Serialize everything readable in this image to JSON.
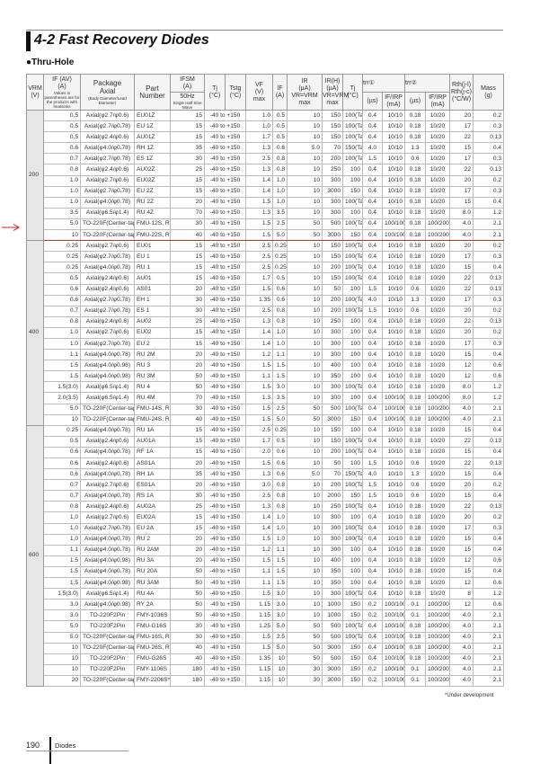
{
  "title": "4-2 Fast Recovery Diodes",
  "subtitle": "●Thru-Hole",
  "accent_color": "#cc2222",
  "headers": {
    "vrm": "VRM",
    "vrm_unit": "(V)",
    "if": "IF (AV)",
    "if_unit": "(A)",
    "if_note": "Values in parentheses are for the products with heatsinks",
    "pkg": "Package",
    "pkg2": "Axial",
    "pkg_note": "(Body Diameter/Lead Diameter)",
    "part": "Part Number",
    "ifsm": "IFSM",
    "ifsm_unit": "(A)",
    "ifsm_sub": "50Hz",
    "ifsm_note": "Single Half Sine Wave",
    "tj": "Tj",
    "tj_unit": "(°C)",
    "tstg": "Tstg",
    "tstg_unit": "(°C)",
    "vf": "VF",
    "vf_unit": "(V)",
    "vf_max": "max",
    "vf_if": "IF",
    "vf_if_unit": "(A)",
    "ir": "IR",
    "ir_unit": "(µA)",
    "ir_cond": "VR=VRM",
    "ir_max": "max",
    "irh": "IR(H)",
    "irh_unit": "(µA)",
    "irh_cond": "VR=VRM",
    "irh_max": "max",
    "tj2": "Tj",
    "tj2_unit": "(°C)",
    "trr1": "trr①",
    "trr1_unit": "(µs)",
    "ifirp1": "IF/IRP",
    "ifirp1_unit": "(mA)",
    "trr2": "trr②",
    "trr2_unit": "(µs)",
    "ifirp2": "IF/IRP",
    "ifirp2_unit": "(mA)",
    "rth": "Rth(j-l)",
    "rth2": "Rth(j-c)",
    "rth_unit": "(°C/W)",
    "mass": "Mass",
    "mass_unit": "(g)"
  },
  "groups": [
    {
      "vrm": "200",
      "rows": [
        [
          "0.5",
          "Axial(φ2.7/φ0.6)",
          "EU01Z",
          "15",
          "-40 to +150",
          "1.0",
          "0.5",
          "10",
          "150",
          "100(Ta)",
          "0.4",
          "10/10",
          "0.18",
          "10/20",
          "20",
          "0.2"
        ],
        [
          "0.5",
          "Axial(φ2.7/φ0.78)",
          "EU 1Z",
          "15",
          "-40 to +150",
          "1.0",
          "0.5",
          "10",
          "150",
          "100(Ta)",
          "0.4",
          "10/10",
          "0.18",
          "10/20",
          "17",
          "0.3"
        ],
        [
          "0.5",
          "Axial(φ2.4/φ0.6)",
          "AU01Z",
          "15",
          "-40 to +150",
          "1.7",
          "0.5",
          "10",
          "150",
          "100(Ta)",
          "0.4",
          "10/10",
          "0.18",
          "10/20",
          "22",
          "0.13"
        ],
        [
          "0.6",
          "Axial(φ4.0/φ0.78)",
          "RH 1Z",
          "35",
          "-40 to +150",
          "1.3",
          "0.6",
          "5.0",
          "70",
          "150(Ta)",
          "4.0",
          "10/10",
          "1.3",
          "10/20",
          "15",
          "0.4"
        ],
        [
          "0.7",
          "Axial(φ2.7/φ0.78)",
          "ES 1Z",
          "30",
          "-40 to +150",
          "2.5",
          "0.8",
          "10",
          "200",
          "100(Ta)",
          "1.5",
          "10/10",
          "0.6",
          "10/20",
          "17",
          "0.3"
        ],
        [
          "0.8",
          "Axial(φ2.4/φ0.6)",
          "AU02Z",
          "25",
          "-40 to +150",
          "1.3",
          "0.8",
          "10",
          "250",
          "100",
          "0.4",
          "10/10",
          "0.18",
          "10/20",
          "22",
          "0.13"
        ],
        [
          "1.0",
          "Axial(φ2.7/φ0.6)",
          "EU02Z",
          "15",
          "-40 to +150",
          "1.4",
          "1.0",
          "10",
          "300",
          "100",
          "0.4",
          "10/10",
          "0.18",
          "10/20",
          "20",
          "0.2"
        ],
        [
          "1.0",
          "Axial(φ2.7/φ0.78)",
          "EU 2Z",
          "15",
          "-40 to +150",
          "1.4",
          "1.0",
          "10",
          "3000",
          "150",
          "0.4",
          "10/10",
          "0.18",
          "10/20",
          "17",
          "0.3"
        ],
        [
          "1.0",
          "Axial(φ4.0/φ0.78)",
          "RU 2Z",
          "20",
          "-40 to +150",
          "1.5",
          "1.0",
          "10",
          "300",
          "100(Ta)",
          "0.4",
          "10/10",
          "0.18",
          "10/20",
          "15",
          "0.4"
        ],
        [
          "3.5",
          "Axial(φ6.5/φ1.4)",
          "RU 4Z",
          "70",
          "-40 to +150",
          "1.3",
          "3.5",
          "10",
          "300",
          "100",
          "0.4",
          "10/10",
          "0.18",
          "10/20",
          "8.0",
          "1.2"
        ],
        [
          "5.0",
          "TO-220F(Center-tap)",
          "FMU-12S, R",
          "30",
          "-40 to +150",
          "1.5",
          "2.5",
          "50",
          "500",
          "100(Ta)",
          "0.4",
          "100/100",
          "0.18",
          "100/200",
          "4.0",
          "2.1"
        ],
        [
          "10",
          "TO-220F(Center-tap)",
          "FMU-22S, R",
          "40",
          "-40 to +150",
          "1.5",
          "5.0",
          "50",
          "3000",
          "150",
          "0.4",
          "100/100",
          "0.18",
          "100/200",
          "4.0",
          "2.1"
        ]
      ]
    },
    {
      "vrm": "400",
      "rows": [
        [
          "0.25",
          "Axial(φ2.7/φ0.6)",
          "EU01",
          "15",
          "-40 to +150",
          "2.5",
          "0.25",
          "10",
          "150",
          "100(Ta)",
          "0.4",
          "10/10",
          "0.18",
          "10/20",
          "20",
          "0.2"
        ],
        [
          "0.25",
          "Axial(φ2.7/φ0.78)",
          "EU 1",
          "15",
          "-40 to +150",
          "2.5",
          "0.25",
          "10",
          "150",
          "100(Ta)",
          "0.4",
          "10/10",
          "0.18",
          "10/20",
          "17",
          "0.3"
        ],
        [
          "0.25",
          "Axial(φ4.0/φ0.78)",
          "RU 1",
          "15",
          "-40 to +150",
          "2.5",
          "0.25",
          "10",
          "200",
          "100(Ta)",
          "0.4",
          "10/10",
          "0.18",
          "10/20",
          "15",
          "0.4"
        ],
        [
          "0.5",
          "Axial(φ2.4/φ0.6)",
          "AU01",
          "15",
          "-40 to +150",
          "1.7",
          "0.5",
          "10",
          "150",
          "100(Ta)",
          "0.4",
          "10/10",
          "0.18",
          "10/20",
          "22",
          "0.13"
        ],
        [
          "0.6",
          "Axial(φ2.4/φ0.6)",
          "AS01",
          "20",
          "-40 to +150",
          "1.5",
          "0.6",
          "10",
          "50",
          "100",
          "1.5",
          "10/10",
          "0.6",
          "10/20",
          "22",
          "0.13"
        ],
        [
          "0.6",
          "Axial(φ2.7/φ0.78)",
          "EH 1",
          "30",
          "-40 to +150",
          "1.35",
          "0.6",
          "10",
          "200",
          "100(Ta)",
          "4.0",
          "10/10",
          "1.3",
          "10/20",
          "17",
          "0.3"
        ],
        [
          "0.7",
          "Axial(φ2.7/φ0.78)",
          "ES 1",
          "30",
          "-40 to +150",
          "2.5",
          "0.8",
          "10",
          "200",
          "100(Ta)",
          "1.5",
          "10/10",
          "0.6",
          "10/20",
          "20",
          "0.2"
        ],
        [
          "0.8",
          "Axial(φ2.4/φ0.6)",
          "AU02",
          "25",
          "-40 to +150",
          "1.3",
          "0.8",
          "10",
          "250",
          "100",
          "0.4",
          "10/10",
          "0.18",
          "10/20",
          "22",
          "0.13"
        ],
        [
          "1.0",
          "Axial(φ2.7/φ0.6)",
          "EU02",
          "15",
          "-40 to +150",
          "1.4",
          "1.0",
          "10",
          "300",
          "100",
          "0.4",
          "10/10",
          "0.18",
          "10/20",
          "20",
          "0.2"
        ],
        [
          "1.0",
          "Axial(φ2.7/φ0.78)",
          "EU 2",
          "15",
          "-40 to +150",
          "1.4",
          "1.0",
          "10",
          "300",
          "100",
          "0.4",
          "10/10",
          "0.18",
          "10/20",
          "17",
          "0.3"
        ],
        [
          "1.1",
          "Axial(φ4.0/φ0.78)",
          "RU 2M",
          "20",
          "-40 to +150",
          "1.2",
          "1.1",
          "10",
          "300",
          "100",
          "0.4",
          "10/10",
          "0.18",
          "10/20",
          "15",
          "0.4"
        ],
        [
          "1.5",
          "Axial(φ4.0/φ0.98)",
          "RU 3",
          "20",
          "-40 to +150",
          "1.5",
          "1.5",
          "10",
          "400",
          "100",
          "0.4",
          "10/10",
          "0.18",
          "10/20",
          "12",
          "0.6"
        ],
        [
          "1.5",
          "Axial(φ4.0/φ0.98)",
          "RU 3M",
          "50",
          "-40 to +150",
          "1.1",
          "1.5",
          "10",
          "350",
          "100",
          "0.4",
          "10/10",
          "0.18",
          "10/20",
          "12",
          "0.6"
        ],
        [
          "1.5(3.0)",
          "Axial(φ6.5/φ1.4)",
          "RU 4",
          "50",
          "-40 to +150",
          "1.5",
          "3.0",
          "10",
          "300",
          "100(Ta)",
          "0.4",
          "10/10",
          "0.18",
          "10/20",
          "8.0",
          "1.2"
        ],
        [
          "2.0(3.5)",
          "Axial(φ6.5/φ1.4)",
          "RU 4M",
          "70",
          "-40 to +150",
          "1.3",
          "3.5",
          "10",
          "300",
          "100",
          "0.4",
          "100/100",
          "0.18",
          "100/200",
          "8.0",
          "1.2"
        ],
        [
          "5.0",
          "TO-220F(Center-tap)",
          "FMU-14S, R",
          "30",
          "-40 to +150",
          "1.5",
          "2.5",
          "50",
          "500",
          "100(Ta)",
          "0.4",
          "100/100",
          "0.18",
          "100/200",
          "4.0",
          "2.1"
        ],
        [
          "10",
          "TO-220F(Center-tap)",
          "FMU-24S, R",
          "40",
          "-40 to +150",
          "1.5",
          "5.0",
          "50",
          "3000",
          "150",
          "0.4",
          "100/100",
          "0.18",
          "100/200",
          "4.0",
          "2.1"
        ]
      ]
    },
    {
      "vrm": "600",
      "rows": [
        [
          "0.25",
          "Axial(φ4.0/φ0.78)",
          "RU 1A",
          "15",
          "-40 to +150",
          "2.5",
          "0.25",
          "10",
          "150",
          "100",
          "0.4",
          "10/10",
          "0.18",
          "10/20",
          "15",
          "0.4"
        ],
        [
          "0.5",
          "Axial(φ2.4/φ0.6)",
          "AU01A",
          "15",
          "-40 to +150",
          "1.7",
          "0.5",
          "10",
          "150",
          "100(Ta)",
          "0.4",
          "10/10",
          "0.18",
          "10/20",
          "22",
          "0.13"
        ],
        [
          "0.6",
          "Axial(φ4.0/φ0.78)",
          "RF 1A",
          "15",
          "-40 to +150",
          "2.0",
          "0.6",
          "10",
          "200",
          "100(Ta)",
          "0.4",
          "10/10",
          "0.18",
          "10/20",
          "15",
          "0.4"
        ],
        [
          "0.6",
          "Axial(φ2.4/φ0.6)",
          "AS01A",
          "20",
          "-40 to +150",
          "1.5",
          "0.6",
          "10",
          "50",
          "100",
          "1.5",
          "10/10",
          "0.6",
          "10/20",
          "22",
          "0.13"
        ],
        [
          "0.6",
          "Axial(φ4.0/φ0.78)",
          "RH 1A",
          "35",
          "-40 to +150",
          "1.3",
          "0.6",
          "5.0",
          "70",
          "150(Ta)",
          "4.0",
          "10/10",
          "1.3",
          "10/20",
          "15",
          "0.4"
        ],
        [
          "0.7",
          "Axial(φ2.7/φ0.6)",
          "ES01A",
          "20",
          "-40 to +150",
          "3.0",
          "0.8",
          "10",
          "200",
          "100(Ta)",
          "1.5",
          "10/10",
          "0.6",
          "10/20",
          "20",
          "0.2"
        ],
        [
          "0.7",
          "Axial(φ4.0/φ0.78)",
          "RS 1A",
          "30",
          "-40 to +150",
          "2.5",
          "0.8",
          "10",
          "2000",
          "150",
          "1.5",
          "10/10",
          "0.6",
          "10/20",
          "15",
          "0.4"
        ],
        [
          "0.8",
          "Axial(φ2.4/φ0.6)",
          "AU02A",
          "25",
          "-40 to +150",
          "1.3",
          "0.8",
          "10",
          "250",
          "100(Ta)",
          "0.4",
          "10/10",
          "0.18",
          "10/20",
          "22",
          "0.13"
        ],
        [
          "1.0",
          "Axial(φ2.7/φ0.6)",
          "EU02A",
          "15",
          "-40 to +150",
          "1.4",
          "1.0",
          "10",
          "300",
          "100",
          "0.4",
          "10/10",
          "0.18",
          "10/20",
          "20",
          "0.2"
        ],
        [
          "1.0",
          "Axial(φ2.7/φ0.78)",
          "EU 2A",
          "15",
          "-40 to +150",
          "1.4",
          "1.0",
          "10",
          "300",
          "100(Ta)",
          "0.4",
          "10/10",
          "0.18",
          "10/20",
          "17",
          "0.3"
        ],
        [
          "1.0",
          "Axial(φ4.0/φ0.78)",
          "RU 2",
          "20",
          "-40 to +150",
          "1.5",
          "1.0",
          "10",
          "300",
          "100(Ta)",
          "0.4",
          "10/10",
          "0.18",
          "10/20",
          "15",
          "0.4"
        ],
        [
          "1.1",
          "Axial(φ4.0/φ0.78)",
          "RU 2AM",
          "20",
          "-40 to +150",
          "1.2",
          "1.1",
          "10",
          "300",
          "100",
          "0.4",
          "10/10",
          "0.18",
          "10/20",
          "15",
          "0.4"
        ],
        [
          "1.5",
          "Axial(φ4.0/φ0.98)",
          "RU 3A",
          "20",
          "-40 to +150",
          "1.5",
          "1.5",
          "10",
          "400",
          "100",
          "0.4",
          "10/10",
          "0.18",
          "10/20",
          "12",
          "0.6"
        ],
        [
          "1.5",
          "Axial(φ4.0/φ0.78)",
          "RU 20A",
          "50",
          "-40 to +150",
          "1.1",
          "1.5",
          "10",
          "350",
          "100",
          "0.4",
          "10/10",
          "0.18",
          "10/20",
          "15",
          "0.4"
        ],
        [
          "1.5",
          "Axial(φ4.0/φ0.98)",
          "RU 3AM",
          "50",
          "-40 to +150",
          "1.1",
          "1.5",
          "10",
          "350",
          "100",
          "0.4",
          "10/10",
          "0.18",
          "10/20",
          "12",
          "0.6"
        ],
        [
          "1.5(3.0)",
          "Axial(φ6.5/φ1.4)",
          "RU 4A",
          "50",
          "-40 to +150",
          "1.5",
          "3.0",
          "10",
          "300",
          "100(Ta)",
          "0.4",
          "10/10",
          "0.18",
          "10/20",
          "8",
          "1.2"
        ],
        [
          "3.0",
          "Axial(φ4.0/φ0.98)",
          "RY 2A",
          "50",
          "-40 to +150",
          "1.15",
          "3.0",
          "10",
          "1000",
          "150",
          "0.2",
          "100/100",
          "0.1",
          "100/200",
          "12",
          "0.6"
        ],
        [
          "3.0",
          "TO-220F2Pin",
          "FMY-1036S",
          "50",
          "-40 to +150",
          "1.15",
          "3.0",
          "10",
          "1000",
          "150",
          "0.2",
          "100/100",
          "0.1",
          "100/200",
          "4.0",
          "2.1"
        ],
        [
          "5.0",
          "TO-220F2Pin",
          "FMU-G16S",
          "30",
          "-40 to +150",
          "1.25",
          "5.0",
          "50",
          "500",
          "100(Ta)",
          "0.4",
          "100/100",
          "0.18",
          "100/200",
          "4.0",
          "2.1"
        ],
        [
          "5.0",
          "TO-220F(Center-tap)",
          "FMU-16S, R",
          "30",
          "-40 to +150",
          "1.5",
          "2.5",
          "50",
          "500",
          "100(Ta)",
          "0.4",
          "100/100",
          "0.18",
          "100/200",
          "4.0",
          "2.1"
        ],
        [
          "10",
          "TO-220F(Center-tap)",
          "FMU-26S, R",
          "40",
          "-40 to +150",
          "1.5",
          "5.0",
          "50",
          "3000",
          "150",
          "0.4",
          "100/100",
          "0.18",
          "100/200",
          "4.0",
          "2.1"
        ],
        [
          "10",
          "TO-220F2Pin",
          "FMU-G26S",
          "40",
          "-40 to +150",
          "1.35",
          "10",
          "50",
          "500",
          "150",
          "0.4",
          "100/100",
          "0.18",
          "100/200",
          "4.0",
          "2.1"
        ],
        [
          "10",
          "TO-220F2Pin",
          "FMY-1106S",
          "180",
          "-40 to +150",
          "1.15",
          "10",
          "30",
          "3000",
          "150",
          "0.2",
          "100/100",
          "0.1",
          "100/200",
          "4.0",
          "2.1"
        ],
        [
          "20",
          "TO-220F(Center-tap)",
          "FMY-2206S*",
          "180",
          "-40 to +150",
          "1.15",
          "10",
          "30",
          "3000",
          "150",
          "0.2",
          "100/100",
          "0.1",
          "100/200",
          "4.0",
          "2.1"
        ]
      ]
    }
  ],
  "footnote": "*Under development",
  "footer": {
    "page": "190",
    "section": "Diodes"
  }
}
